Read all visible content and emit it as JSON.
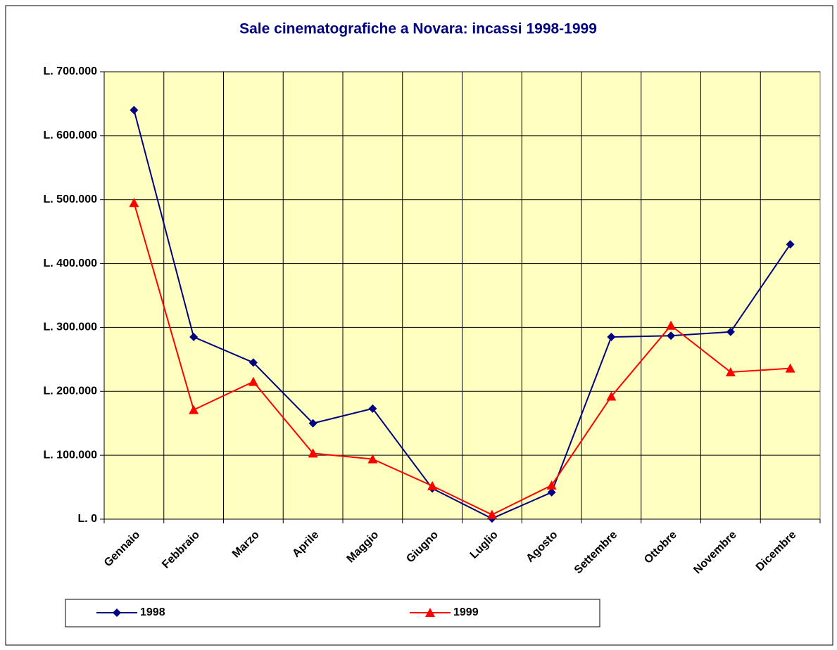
{
  "chart_data": {
    "type": "line",
    "title": "Sale cinematografiche a Novara: incassi 1998-1999",
    "categories": [
      "Gennaio",
      "Febbraio",
      "Marzo",
      "Aprile",
      "Maggio",
      "Giugno",
      "Luglio",
      "Agosto",
      "Settembre",
      "Ottobre",
      "Novembre",
      "Dicembre"
    ],
    "series": [
      {
        "name": "1998",
        "color": "#000080",
        "marker": "diamond",
        "values": [
          640000,
          285000,
          245000,
          150000,
          173000,
          48000,
          1000,
          42000,
          285000,
          287000,
          293000,
          430000
        ]
      },
      {
        "name": "1999",
        "color": "#ff0000",
        "marker": "triangle",
        "values": [
          495000,
          171000,
          215000,
          103000,
          94000,
          52000,
          7000,
          53000,
          192000,
          303000,
          230000,
          236000
        ]
      }
    ],
    "ylim": [
      0,
      700000
    ],
    "yticks": [
      {
        "value": 0,
        "label": "L. 0"
      },
      {
        "value": 100000,
        "label": "L. 100.000"
      },
      {
        "value": 200000,
        "label": "L. 200.000"
      },
      {
        "value": 300000,
        "label": "L. 300.000"
      },
      {
        "value": 400000,
        "label": "L. 400.000"
      },
      {
        "value": 500000,
        "label": "L. 500.000"
      },
      {
        "value": 600000,
        "label": "L. 600.000"
      },
      {
        "value": 700000,
        "label": "L. 700.000"
      }
    ],
    "grid": true,
    "legend": "bottom"
  }
}
